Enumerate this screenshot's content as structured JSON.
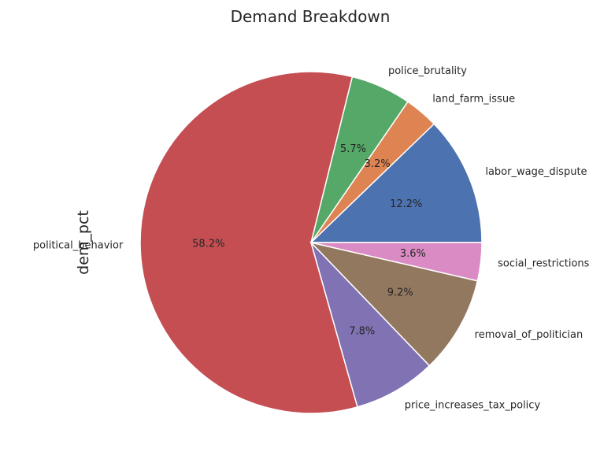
{
  "chart_data": {
    "type": "pie",
    "title": "Demand Breakdown",
    "ylabel": "dem_pct",
    "start_angle": 0,
    "direction": "counterclockwise",
    "slices": [
      {
        "label": "labor_wage_dispute",
        "value": 12.2,
        "pct_label": "12.2%",
        "color": "#4c72b0"
      },
      {
        "label": "land_farm_issue",
        "value": 3.2,
        "pct_label": "3.2%",
        "color": "#dd8452"
      },
      {
        "label": "police_brutality",
        "value": 5.7,
        "pct_label": "5.7%",
        "color": "#55a868"
      },
      {
        "label": "political_behavior",
        "value": 58.2,
        "pct_label": "58.2%",
        "color": "#c44e52"
      },
      {
        "label": "price_increases_tax_policy",
        "value": 7.8,
        "pct_label": "7.8%",
        "color": "#8172b3"
      },
      {
        "label": "removal_of_politician",
        "value": 9.2,
        "pct_label": "9.2%",
        "color": "#937860"
      },
      {
        "label": "social_restrictions",
        "value": 3.6,
        "pct_label": "3.6%",
        "color": "#da8bc3"
      }
    ]
  }
}
